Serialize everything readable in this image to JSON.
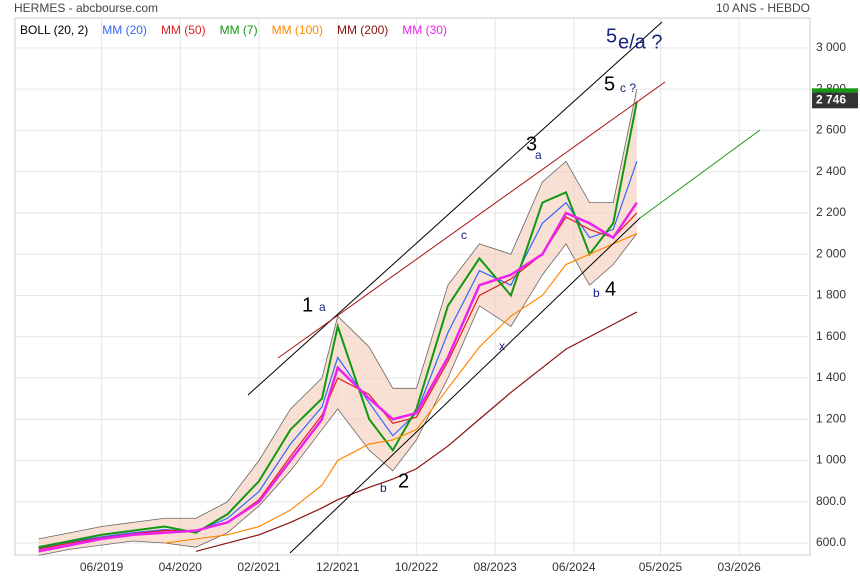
{
  "chart_data": {
    "type": "line",
    "title": "HERMES - abcbourse.com",
    "subtitle": "10 ANS - HEBDO",
    "x": [
      "10/2018",
      "02/2019",
      "06/2019",
      "10/2019",
      "02/2020",
      "06/2020",
      "10/2020",
      "02/2021",
      "06/2021",
      "10/2021",
      "12/2021",
      "04/2022",
      "07/2022",
      "10/2022",
      "02/2023",
      "06/2023",
      "10/2023",
      "02/2024",
      "05/2024",
      "08/2024",
      "11/2024",
      "02/2025"
    ],
    "bollinger": {
      "name": "BOLL (20, 2)",
      "color": "#f3c9b0",
      "upper": [
        620,
        650,
        680,
        700,
        720,
        720,
        800,
        1000,
        1250,
        1400,
        1700,
        1550,
        1350,
        1350,
        1850,
        2050,
        2000,
        2350,
        2450,
        2250,
        2250,
        2800
      ],
      "lower": [
        540,
        570,
        590,
        610,
        600,
        580,
        650,
        780,
        950,
        1150,
        1250,
        1050,
        950,
        1100,
        1400,
        1750,
        1650,
        1900,
        2050,
        1850,
        1950,
        2100
      ]
    },
    "series": [
      {
        "name": "MM (20)",
        "color": "#3366ff",
        "values": [
          575,
          605,
          630,
          650,
          665,
          655,
          720,
          850,
          1080,
          1260,
          1500,
          1280,
          1120,
          1230,
          1620,
          1920,
          1850,
          2150,
          2250,
          2080,
          2120,
          2450
        ]
      },
      {
        "name": "MM (50)",
        "color": "#dd2222",
        "values": [
          570,
          600,
          625,
          645,
          660,
          660,
          700,
          810,
          1020,
          1220,
          1400,
          1320,
          1180,
          1210,
          1480,
          1800,
          1880,
          2000,
          2180,
          2120,
          2080,
          2200
        ]
      },
      {
        "name": "MM (7)",
        "color": "#119911",
        "values": [
          580,
          610,
          640,
          660,
          680,
          650,
          740,
          900,
          1150,
          1300,
          1650,
          1200,
          1050,
          1250,
          1750,
          1980,
          1800,
          2250,
          2300,
          2000,
          2150,
          2740
        ]
      },
      {
        "name": "MM (100)",
        "color": "#ff8800",
        "values": [
          null,
          null,
          null,
          null,
          600,
          620,
          640,
          680,
          760,
          880,
          1000,
          1080,
          1100,
          1150,
          1350,
          1550,
          1700,
          1800,
          1950,
          2000,
          2050,
          2100
        ]
      },
      {
        "name": "MM (200)",
        "color": "#881111",
        "values": [
          null,
          null,
          null,
          null,
          null,
          560,
          600,
          640,
          700,
          770,
          810,
          870,
          910,
          960,
          1070,
          1200,
          1330,
          1450,
          1540,
          1600,
          1660,
          1720
        ]
      },
      {
        "name": "MM (30)",
        "color": "#ee22ee",
        "values": [
          560,
          590,
          620,
          640,
          650,
          660,
          700,
          800,
          1000,
          1200,
          1450,
          1300,
          1200,
          1230,
          1500,
          1850,
          1900,
          2000,
          2200,
          2150,
          2080,
          2250
        ]
      }
    ],
    "last": {
      "value": 2746,
      "label": "2 746"
    },
    "xlim": [
      "07/2018",
      "12/2026"
    ],
    "xticks": [
      "06/2019",
      "04/2020",
      "02/2021",
      "12/2021",
      "10/2022",
      "08/2023",
      "06/2024",
      "05/2025",
      "03/2026"
    ],
    "ylim": [
      542,
      3145
    ],
    "yticks": [
      {
        "value": 600,
        "label": "600.0"
      },
      {
        "value": 800,
        "label": "800.0"
      },
      {
        "value": 1000,
        "label": "1 000"
      },
      {
        "value": 1200,
        "label": "1 200"
      },
      {
        "value": 1400,
        "label": "1 400"
      },
      {
        "value": 1600,
        "label": "1 600"
      },
      {
        "value": 1800,
        "label": "1 800"
      },
      {
        "value": 2000,
        "label": "2 000"
      },
      {
        "value": 2200,
        "label": "2 200"
      },
      {
        "value": 2400,
        "label": "2 400"
      },
      {
        "value": 2600,
        "label": "2 600"
      },
      {
        "value": 2800,
        "label": "2 800"
      },
      {
        "value": 3000,
        "label": "3 000"
      }
    ],
    "grid": true,
    "annotations": [
      "1",
      "a",
      "2",
      "b",
      "3",
      "a",
      "c",
      "x",
      "4",
      "b",
      "5",
      "c ?",
      "5",
      "e/a ?"
    ]
  }
}
